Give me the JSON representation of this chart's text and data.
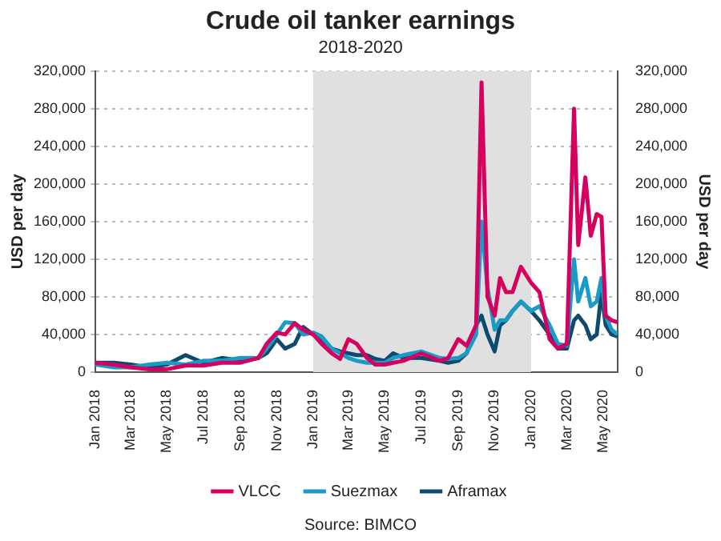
{
  "chart_data": {
    "type": "line",
    "title": "Crude oil tanker earnings",
    "subtitle": "2018-2020",
    "ylabel": "USD per day",
    "y2label": "USD per day",
    "x": [
      "2018-01-01",
      "2018-02-01",
      "2018-03-01",
      "2018-04-01",
      "2018-05-01",
      "2018-06-01",
      "2018-07-01",
      "2018-08-01",
      "2018-09-01",
      "2018-10-01",
      "2018-10-15",
      "2018-11-01",
      "2018-11-15",
      "2018-12-01",
      "2018-12-15",
      "2019-01-01",
      "2019-01-15",
      "2019-02-01",
      "2019-02-15",
      "2019-03-01",
      "2019-03-15",
      "2019-04-01",
      "2019-04-15",
      "2019-05-01",
      "2019-05-15",
      "2019-06-01",
      "2019-07-01",
      "2019-08-01",
      "2019-08-15",
      "2019-09-01",
      "2019-09-15",
      "2019-10-01",
      "2019-10-10",
      "2019-10-20",
      "2019-11-01",
      "2019-11-10",
      "2019-11-20",
      "2019-12-01",
      "2019-12-15",
      "2020-01-01",
      "2020-01-15",
      "2020-02-01",
      "2020-02-15",
      "2020-03-01",
      "2020-03-13",
      "2020-03-20",
      "2020-04-01",
      "2020-04-10",
      "2020-04-20",
      "2020-04-28",
      "2020-05-05",
      "2020-05-15",
      "2020-05-25"
    ],
    "series": [
      {
        "name": "VLCC",
        "color": "#d6005f",
        "values": [
          10000,
          8000,
          5000,
          3000,
          3000,
          7000,
          7000,
          10000,
          10000,
          15000,
          30000,
          42000,
          40000,
          52000,
          45000,
          40000,
          30000,
          20000,
          14000,
          35000,
          30000,
          15000,
          8000,
          8000,
          10000,
          12000,
          20000,
          12000,
          15000,
          35000,
          28000,
          50000,
          308000,
          80000,
          60000,
          100000,
          85000,
          85000,
          112000,
          95000,
          85000,
          35000,
          25000,
          30000,
          280000,
          135000,
          207000,
          145000,
          168000,
          165000,
          60000,
          55000,
          53000
        ]
      },
      {
        "name": "Suezmax",
        "color": "#1a9bc7",
        "values": [
          8000,
          5000,
          5000,
          8000,
          10000,
          8000,
          12000,
          12000,
          15000,
          15000,
          25000,
          40000,
          53000,
          52000,
          40000,
          42000,
          38000,
          25000,
          20000,
          15000,
          12000,
          10000,
          10000,
          10000,
          15000,
          18000,
          22000,
          15000,
          14000,
          15000,
          20000,
          40000,
          160000,
          90000,
          45000,
          55000,
          55000,
          65000,
          75000,
          65000,
          70000,
          50000,
          30000,
          28000,
          120000,
          75000,
          100000,
          70000,
          75000,
          100000,
          60000,
          45000,
          40000
        ]
      },
      {
        "name": "Aframax",
        "color": "#0e4a6e",
        "values": [
          10000,
          10000,
          8000,
          5000,
          8000,
          18000,
          10000,
          15000,
          12000,
          15000,
          20000,
          35000,
          25000,
          30000,
          48000,
          40000,
          32000,
          25000,
          22000,
          20000,
          18000,
          18000,
          14000,
          12000,
          20000,
          15000,
          15000,
          12000,
          10000,
          12000,
          20000,
          50000,
          60000,
          40000,
          22000,
          50000,
          55000,
          65000,
          75000,
          65000,
          55000,
          40000,
          25000,
          25000,
          55000,
          60000,
          50000,
          35000,
          40000,
          85000,
          50000,
          40000,
          38000
        ]
      }
    ],
    "xlim": [
      "2018-01-01",
      "2020-05-25"
    ],
    "xticks": [
      {
        "value": "2018-01-01",
        "label": "Jan 2018"
      },
      {
        "value": "2018-03-01",
        "label": "Mar 2018"
      },
      {
        "value": "2018-05-01",
        "label": "May 2018"
      },
      {
        "value": "2018-07-01",
        "label": "Jul 2018"
      },
      {
        "value": "2018-09-01",
        "label": "Sep 2018"
      },
      {
        "value": "2018-11-01",
        "label": "Nov 2018"
      },
      {
        "value": "2019-01-01",
        "label": "Jan 2019"
      },
      {
        "value": "2019-03-01",
        "label": "Mar 2019"
      },
      {
        "value": "2019-05-01",
        "label": "May 2019"
      },
      {
        "value": "2019-07-01",
        "label": "Jul 2019"
      },
      {
        "value": "2019-09-01",
        "label": "Sep 2019"
      },
      {
        "value": "2019-11-01",
        "label": "Nov 2019"
      },
      {
        "value": "2020-01-01",
        "label": "Jan 2020"
      },
      {
        "value": "2020-03-01",
        "label": "Mar 2020"
      },
      {
        "value": "2020-05-01",
        "label": "May 2020"
      }
    ],
    "ylim": [
      0,
      320000
    ],
    "yticks": [
      {
        "value": 0,
        "label": "0"
      },
      {
        "value": 40000,
        "label": "40,000"
      },
      {
        "value": 80000,
        "label": "80,000"
      },
      {
        "value": 120000,
        "label": "120,000"
      },
      {
        "value": 160000,
        "label": "160,000"
      },
      {
        "value": 200000,
        "label": "200,000"
      },
      {
        "value": 240000,
        "label": "240,000"
      },
      {
        "value": 280000,
        "label": "280,000"
      },
      {
        "value": 320000,
        "label": "320,000"
      }
    ],
    "y2lim": [
      0,
      320000
    ],
    "y2ticks": [
      {
        "value": 0,
        "label": "0"
      },
      {
        "value": 40000,
        "label": "40,000"
      },
      {
        "value": 80000,
        "label": "80,000"
      },
      {
        "value": 120000,
        "label": "120,000"
      },
      {
        "value": 160000,
        "label": "160,000"
      },
      {
        "value": 200000,
        "label": "200,000"
      },
      {
        "value": 240000,
        "label": "240,000"
      },
      {
        "value": 280000,
        "label": "280,000"
      },
      {
        "value": 320000,
        "label": "320,000"
      }
    ],
    "bands": [
      {
        "axis": "x",
        "from": "2019-01-01",
        "to": "2020-01-01",
        "color": "#e0e0e0"
      }
    ],
    "grid": "y",
    "legend": "bottom",
    "marker": "none",
    "line_style": "solid",
    "annotations": [
      "Source: BIMCO"
    ]
  }
}
